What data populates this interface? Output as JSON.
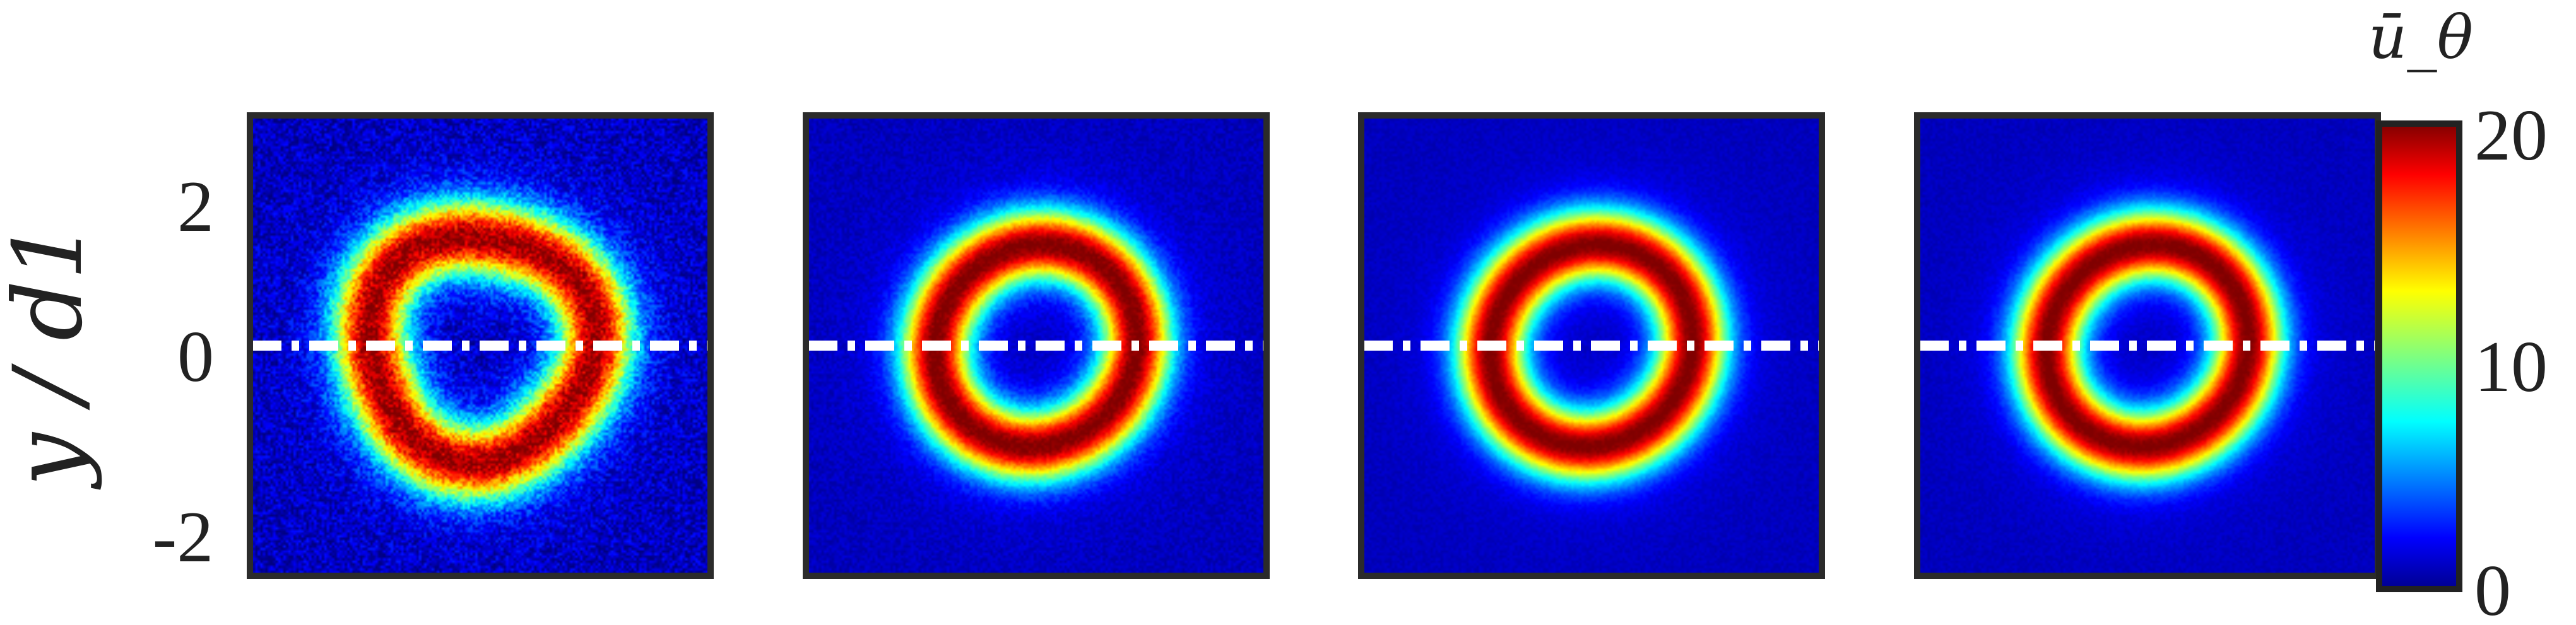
{
  "chart_data": {
    "type": "heatmap",
    "colormap": "jet",
    "panels": [
      {
        "smoothness": "noisy",
        "ring_radius": 1.56,
        "ring_width": 0.52,
        "peak": 17.5
      },
      {
        "smoothness": "smoother",
        "ring_radius": 1.4,
        "ring_width": 0.48,
        "peak": 18
      },
      {
        "smoothness": "smooth",
        "ring_radius": 1.4,
        "ring_width": 0.48,
        "peak": 18
      },
      {
        "smoothness": "smooth",
        "ring_radius": 1.4,
        "ring_width": 0.48,
        "peak": 18
      }
    ],
    "ylabel": "y / d1",
    "yticks": [
      2,
      0,
      -2
    ],
    "ytick_labels": [
      "2",
      "0",
      "-2"
    ],
    "ylim": [
      -3.2,
      3.2
    ],
    "xlim": [
      -3.2,
      3.2
    ],
    "reference_line": {
      "y": 0,
      "style": "dash-dot",
      "color": "#ffffff"
    },
    "colorbar": {
      "title": "ū_θ",
      "range": [
        0,
        20
      ],
      "ticks": [
        0,
        10,
        20
      ],
      "tick_labels": [
        "0",
        "10",
        "20"
      ]
    }
  }
}
